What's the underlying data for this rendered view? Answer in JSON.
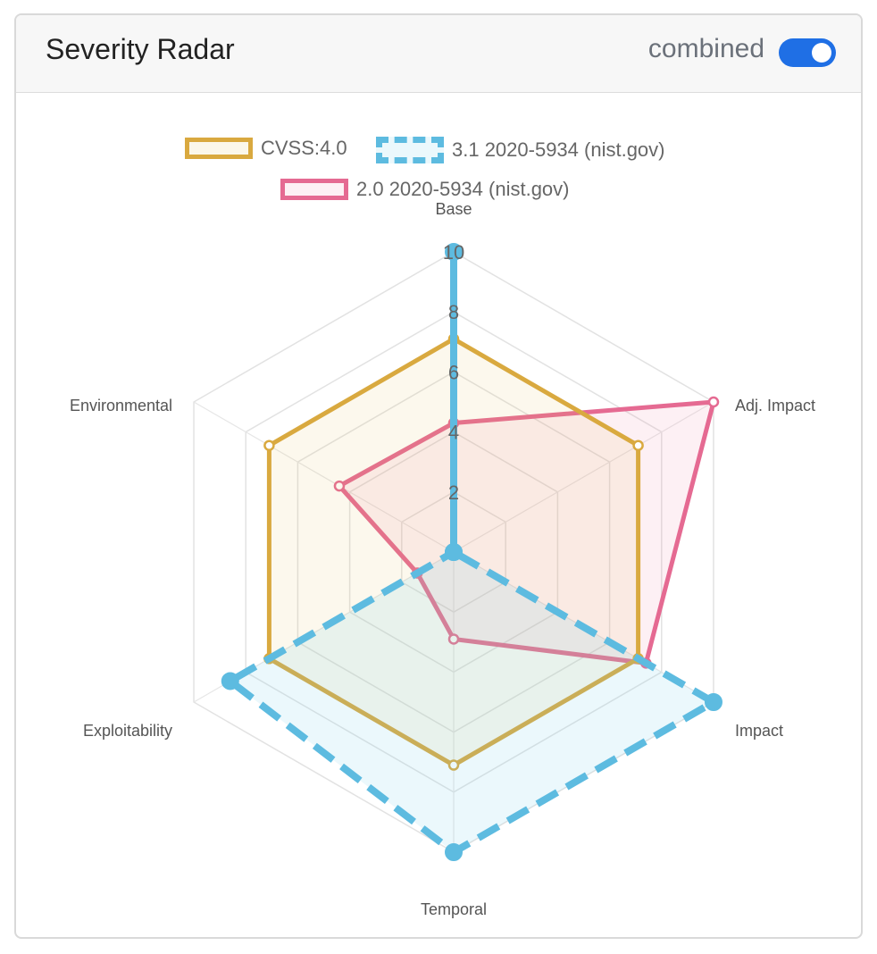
{
  "card": {
    "title": "Severity Radar",
    "toggle_label": "combined",
    "toggle_on": true,
    "accent_color": "#1f6fe5"
  },
  "chart_data": {
    "type": "radar",
    "axes": [
      "Base",
      "Adj. Impact",
      "Impact",
      "Temporal",
      "Exploitability",
      "Environmental"
    ],
    "r_ticks": [
      2,
      4,
      6,
      8,
      10
    ],
    "r_range": [
      0,
      10
    ],
    "series": [
      {
        "name": "CVSS:4.0",
        "color": "#d9a93f",
        "fill": "rgba(226,186,80,0.10)",
        "dashed": false,
        "values": [
          7.1,
          7.1,
          7.1,
          7.1,
          7.1,
          7.1
        ]
      },
      {
        "name": "3.1 2020-5934 (nist.gov)",
        "color": "#5dbbe0",
        "fill": "rgba(120,205,235,0.15)",
        "dashed": true,
        "values": [
          10.0,
          0.0,
          10.0,
          10.0,
          8.6,
          0.0
        ]
      },
      {
        "name": "2.0 2020-5934 (nist.gov)",
        "color": "#e56a92",
        "fill": "rgba(240,140,170,0.13)",
        "dashed": false,
        "values": [
          4.3,
          10.0,
          7.4,
          2.9,
          1.4,
          4.4
        ]
      }
    ]
  }
}
